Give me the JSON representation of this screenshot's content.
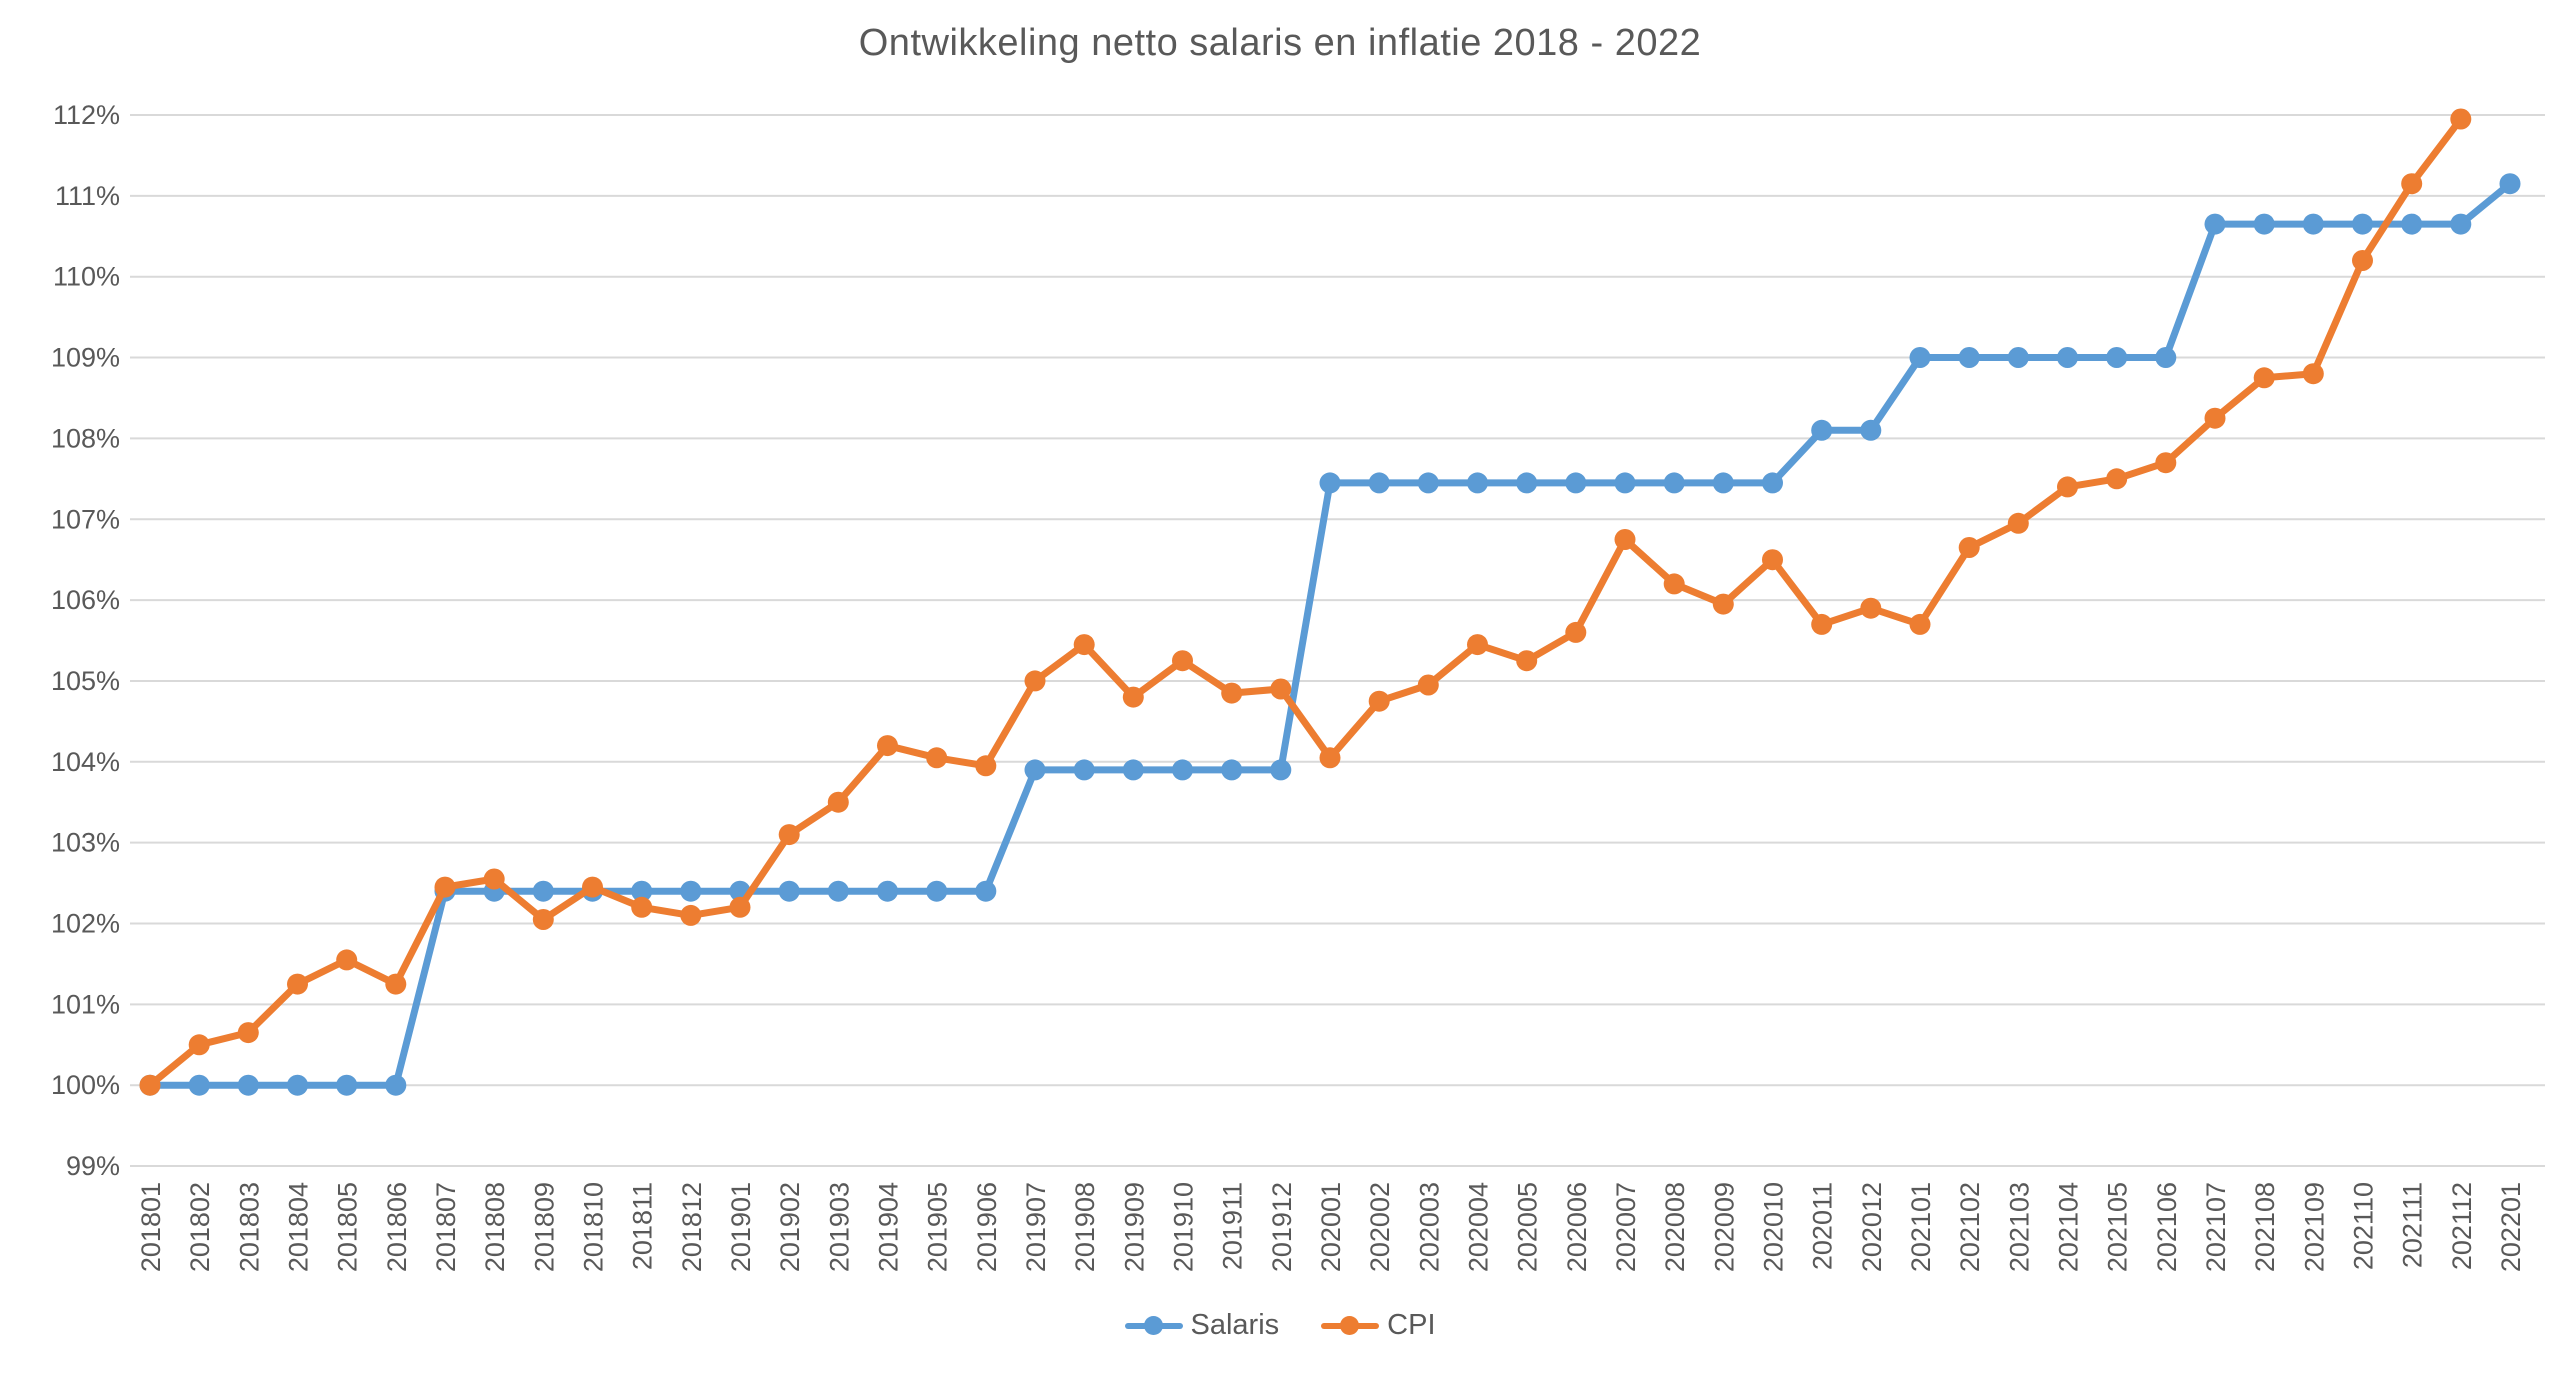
{
  "chart_data": {
    "type": "line",
    "title": "Ontwikkeling netto salaris en inflatie 2018 - 2022",
    "x_categories": [
      "201801",
      "201802",
      "201803",
      "201804",
      "201805",
      "201806",
      "201807",
      "201808",
      "201809",
      "201810",
      "201811",
      "201812",
      "201901",
      "201902",
      "201903",
      "201904",
      "201905",
      "201906",
      "201907",
      "201908",
      "201909",
      "201910",
      "201911",
      "201912",
      "202001",
      "202002",
      "202003",
      "202004",
      "202005",
      "202006",
      "202007",
      "202008",
      "202009",
      "202010",
      "202011",
      "202012",
      "202101",
      "202102",
      "202103",
      "202104",
      "202105",
      "202106",
      "202107",
      "202108",
      "202109",
      "202110",
      "202111",
      "202112",
      "202201"
    ],
    "series": [
      {
        "name": "Salaris",
        "color": "#5B9BD5",
        "values": [
          100,
          100,
          100,
          100,
          100,
          100,
          102.4,
          102.4,
          102.4,
          102.4,
          102.4,
          102.4,
          102.4,
          102.4,
          102.4,
          102.4,
          102.4,
          102.4,
          103.9,
          103.9,
          103.9,
          103.9,
          103.9,
          103.9,
          107.45,
          107.45,
          107.45,
          107.45,
          107.45,
          107.45,
          107.45,
          107.45,
          107.45,
          107.45,
          108.1,
          108.1,
          109,
          109,
          109,
          109,
          109,
          109,
          110.65,
          110.65,
          110.65,
          110.65,
          110.65,
          110.65,
          111.15
        ]
      },
      {
        "name": "CPI",
        "color": "#ED7D31",
        "values": [
          100,
          100.5,
          100.65,
          101.25,
          101.55,
          101.25,
          102.45,
          102.55,
          102.05,
          102.45,
          102.2,
          102.1,
          102.2,
          103.1,
          103.5,
          104.2,
          104.05,
          103.95,
          105,
          105.45,
          104.8,
          105.25,
          104.85,
          104.9,
          104.05,
          104.75,
          104.95,
          105.45,
          105.25,
          105.6,
          106.75,
          106.2,
          105.95,
          106.5,
          105.7,
          105.9,
          105.7,
          106.65,
          106.95,
          107.4,
          107.5,
          107.7,
          108.25,
          108.75,
          108.8,
          110.2,
          111.15,
          111.95,
          null
        ]
      }
    ],
    "ylim": [
      99,
      112
    ],
    "y_tick_step": 1,
    "y_tick_labels": [
      "99%",
      "100%",
      "101%",
      "102%",
      "103%",
      "104%",
      "105%",
      "106%",
      "107%",
      "108%",
      "109%",
      "110%",
      "111%",
      "112%"
    ],
    "grid": "horizontal",
    "grid_color": "#D9D9D9",
    "axis_text_color": "#595959",
    "background": "#FFFFFF",
    "legend_position": "bottom-center"
  }
}
